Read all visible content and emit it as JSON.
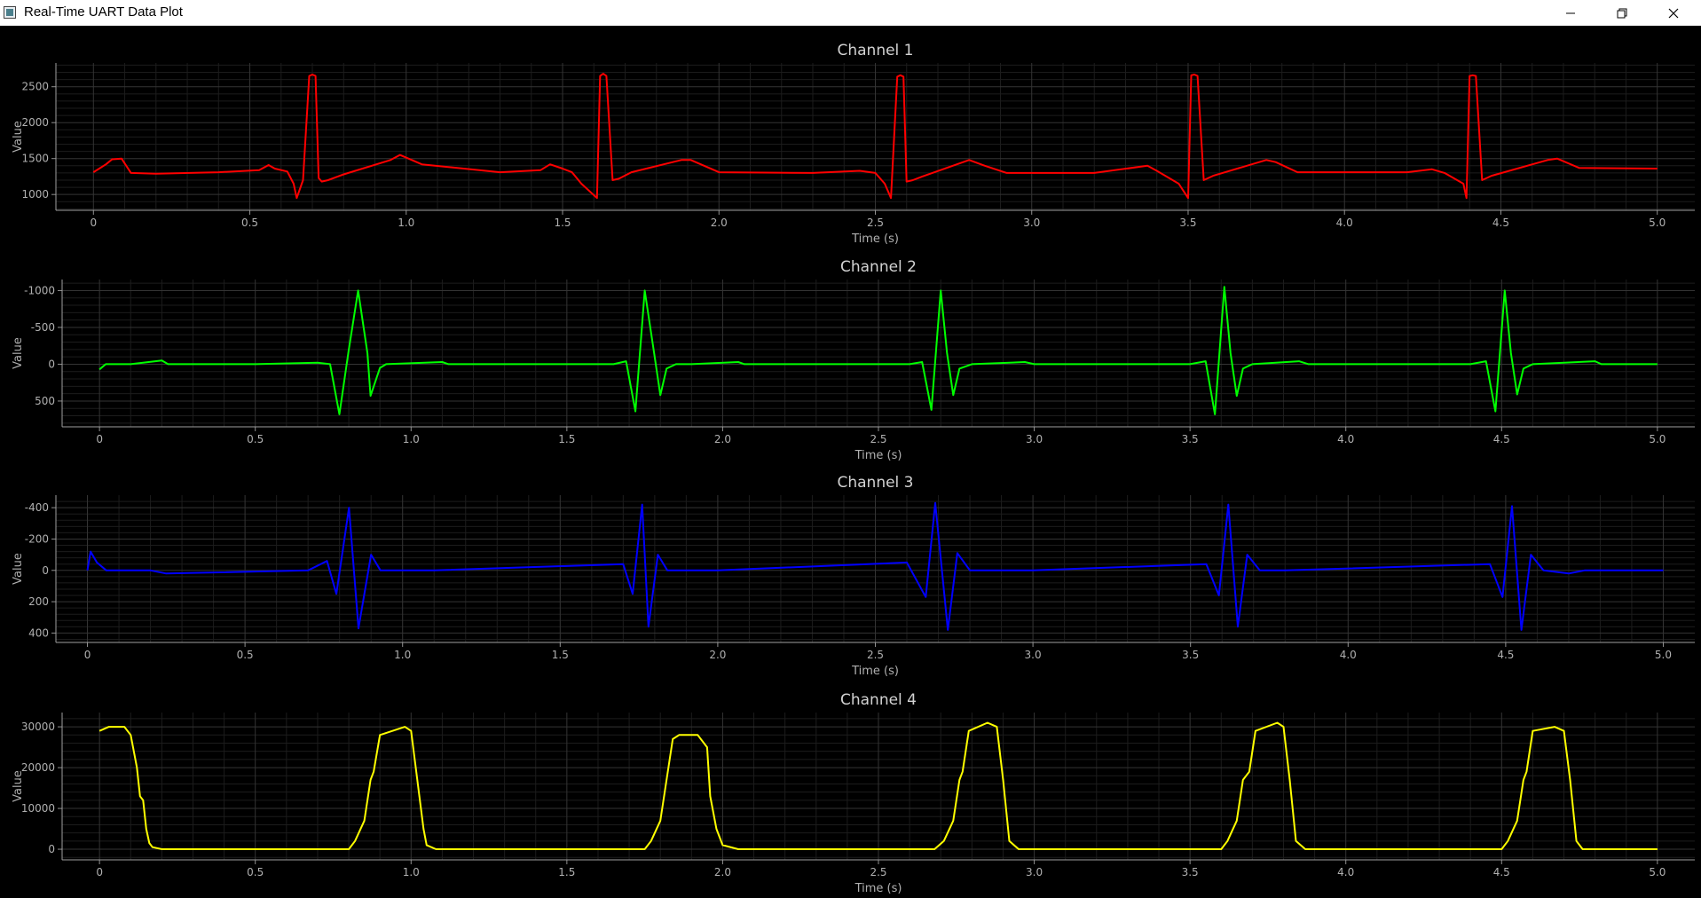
{
  "window": {
    "title": "Real-Time UART Data Plot",
    "icons": {
      "app": "app-icon",
      "minimize": "minimize-icon",
      "maximize": "restore-icon",
      "close": "close-icon"
    }
  },
  "chart_data": [
    {
      "type": "line",
      "title": "Channel 1",
      "xlabel": "Time (s)",
      "ylabel": "Value",
      "color": "#ff0000",
      "grid": true,
      "xlim": [
        -0.12,
        5.12
      ],
      "ylim": [
        780,
        2830
      ],
      "inverted_y": false,
      "xticks": [
        {
          "v": 0,
          "label": "0"
        },
        {
          "v": 0.5,
          "label": "0.5"
        },
        {
          "v": 1,
          "label": "1.0"
        },
        {
          "v": 1.5,
          "label": "1.5"
        },
        {
          "v": 2,
          "label": "2.0"
        },
        {
          "v": 2.5,
          "label": "2.5"
        },
        {
          "v": 3,
          "label": "3.0"
        },
        {
          "v": 3.5,
          "label": "3.5"
        },
        {
          "v": 4,
          "label": "4.0"
        },
        {
          "v": 4.5,
          "label": "4.5"
        },
        {
          "v": 5,
          "label": "5.0"
        }
      ],
      "yticks": [
        {
          "v": 1000,
          "label": "1000"
        },
        {
          "v": 1500,
          "label": "1500"
        },
        {
          "v": 2000,
          "label": "2000"
        },
        {
          "v": 2500,
          "label": "2500"
        }
      ],
      "series": [
        {
          "x": [
            0,
            0.04,
            0.06,
            0.09,
            0.12,
            0.2,
            0.4,
            0.53,
            0.56,
            0.58,
            0.62,
            0.64,
            0.65,
            0.67,
            0.69,
            0.7,
            0.71,
            0.72,
            0.73,
            0.75,
            0.8,
            0.95,
            0.98,
            1.05,
            1.3,
            1.43,
            1.46,
            1.5,
            1.53,
            1.56,
            1.61,
            1.62,
            1.63,
            1.64,
            1.66,
            1.68,
            1.72,
            1.88,
            1.91,
            2.0,
            2.3,
            2.45,
            2.5,
            2.53,
            2.55,
            2.57,
            2.58,
            2.59,
            2.6,
            2.62,
            2.65,
            2.8,
            2.85,
            2.92,
            3.2,
            3.37,
            3.4,
            3.47,
            3.5,
            3.51,
            3.52,
            3.53,
            3.55,
            3.58,
            3.75,
            3.78,
            3.85,
            4.2,
            4.28,
            4.32,
            4.38,
            4.39,
            4.4,
            4.41,
            4.42,
            4.44,
            4.47,
            4.65,
            4.68,
            4.75,
            5.0
          ],
          "y": [
            1310,
            1420,
            1490,
            1500,
            1300,
            1290,
            1310,
            1340,
            1410,
            1360,
            1320,
            1150,
            950,
            1200,
            2650,
            2670,
            2650,
            1230,
            1180,
            1200,
            1280,
            1480,
            1550,
            1420,
            1310,
            1340,
            1420,
            1360,
            1310,
            1150,
            950,
            2650,
            2680,
            2650,
            1200,
            1220,
            1310,
            1480,
            1480,
            1310,
            1300,
            1330,
            1300,
            1150,
            950,
            2640,
            2660,
            2640,
            1180,
            1200,
            1250,
            1480,
            1400,
            1300,
            1300,
            1400,
            1330,
            1150,
            950,
            2660,
            2670,
            2650,
            1200,
            1260,
            1480,
            1450,
            1310,
            1310,
            1350,
            1300,
            1150,
            950,
            2650,
            2660,
            2650,
            1200,
            1260,
            1480,
            1500,
            1370,
            1360
          ]
        }
      ]
    },
    {
      "type": "line",
      "title": "Channel 2",
      "xlabel": "Time (s)",
      "ylabel": "Value",
      "color": "#00ff00",
      "grid": true,
      "xlim": [
        -0.12,
        5.12
      ],
      "ylim": [
        850,
        -1150
      ],
      "inverted_y": true,
      "xticks": [
        {
          "v": 0,
          "label": "0"
        },
        {
          "v": 0.5,
          "label": "0.5"
        },
        {
          "v": 1,
          "label": "1.0"
        },
        {
          "v": 1.5,
          "label": "1.5"
        },
        {
          "v": 2,
          "label": "2.0"
        },
        {
          "v": 2.5,
          "label": "2.5"
        },
        {
          "v": 3,
          "label": "3.0"
        },
        {
          "v": 3.5,
          "label": "3.5"
        },
        {
          "v": 4,
          "label": "4.0"
        },
        {
          "v": 4.5,
          "label": "4.5"
        },
        {
          "v": 5,
          "label": "5.0"
        }
      ],
      "yticks": [
        {
          "v": -1000,
          "label": "-1000"
        },
        {
          "v": -500,
          "label": "-500"
        },
        {
          "v": 0,
          "label": "0"
        },
        {
          "v": 500,
          "label": "500"
        }
      ],
      "series": [
        {
          "x": [
            0,
            0.02,
            0.1,
            0.2,
            0.22,
            0.25,
            0.5,
            0.7,
            0.74,
            0.77,
            0.8,
            0.83,
            0.86,
            0.87,
            0.9,
            0.92,
            1.1,
            1.12,
            1.4,
            1.65,
            1.69,
            1.72,
            1.75,
            1.78,
            1.8,
            1.82,
            1.85,
            1.9,
            2.05,
            2.07,
            2.6,
            2.64,
            2.67,
            2.7,
            2.72,
            2.74,
            2.76,
            2.8,
            2.97,
            3.0,
            3.5,
            3.55,
            3.58,
            3.61,
            3.63,
            3.65,
            3.67,
            3.7,
            3.85,
            3.88,
            4.4,
            4.45,
            4.48,
            4.51,
            4.53,
            4.55,
            4.57,
            4.6,
            4.8,
            4.82,
            5.0
          ],
          "y": [
            70,
            0,
            0,
            -50,
            0,
            0,
            0,
            -20,
            0,
            680,
            -200,
            -1000,
            -150,
            430,
            50,
            0,
            -30,
            0,
            0,
            0,
            -40,
            640,
            -1000,
            -150,
            420,
            60,
            0,
            0,
            -30,
            0,
            0,
            -30,
            620,
            -1000,
            -150,
            420,
            60,
            0,
            -30,
            0,
            0,
            -40,
            680,
            -1050,
            -150,
            430,
            60,
            0,
            -40,
            0,
            0,
            -40,
            640,
            -1000,
            -150,
            410,
            60,
            0,
            -40,
            0,
            0
          ]
        }
      ]
    },
    {
      "type": "line",
      "title": "Channel 3",
      "xlabel": "Time (s)",
      "ylabel": "Value",
      "color": "#0000ff",
      "grid": true,
      "xlim": [
        -0.1,
        5.1
      ],
      "ylim": [
        460,
        -480
      ],
      "inverted_y": true,
      "xticks": [
        {
          "v": 0,
          "label": "0"
        },
        {
          "v": 0.5,
          "label": "0.5"
        },
        {
          "v": 1,
          "label": "1.0"
        },
        {
          "v": 1.5,
          "label": "1.5"
        },
        {
          "v": 2,
          "label": "2.0"
        },
        {
          "v": 2.5,
          "label": "2.5"
        },
        {
          "v": 3,
          "label": "3.0"
        },
        {
          "v": 3.5,
          "label": "3.5"
        },
        {
          "v": 4,
          "label": "4.0"
        },
        {
          "v": 4.5,
          "label": "4.5"
        },
        {
          "v": 5,
          "label": "5.0"
        }
      ],
      "yticks": [
        {
          "v": -400,
          "label": "-400"
        },
        {
          "v": -200,
          "label": "-200"
        },
        {
          "v": 0,
          "label": "0"
        },
        {
          "v": 200,
          "label": "200"
        },
        {
          "v": 400,
          "label": "400"
        }
      ],
      "series": [
        {
          "x": [
            0,
            0.01,
            0.03,
            0.06,
            0.1,
            0.2,
            0.25,
            0.7,
            0.76,
            0.79,
            0.83,
            0.86,
            0.9,
            0.93,
            1.0,
            1.1,
            1.7,
            1.73,
            1.76,
            1.78,
            1.81,
            1.84,
            1.88,
            2.0,
            2.6,
            2.66,
            2.69,
            2.73,
            2.76,
            2.8,
            2.85,
            3.0,
            3.55,
            3.59,
            3.62,
            3.65,
            3.68,
            3.72,
            3.8,
            4.45,
            4.49,
            4.52,
            4.55,
            4.58,
            4.62,
            4.7,
            4.75,
            5.0
          ],
          "y": [
            0,
            -120,
            -50,
            0,
            0,
            0,
            20,
            0,
            -60,
            150,
            -400,
            370,
            -100,
            0,
            0,
            0,
            -40,
            150,
            -420,
            360,
            -100,
            0,
            0,
            0,
            -50,
            170,
            -430,
            380,
            -110,
            0,
            0,
            0,
            -40,
            160,
            -420,
            360,
            -100,
            0,
            0,
            -40,
            170,
            -410,
            380,
            -100,
            0,
            20,
            0,
            0
          ]
        }
      ]
    },
    {
      "type": "line",
      "title": "Channel 4",
      "xlabel": "Time (s)",
      "ylabel": "Value",
      "color": "#ffff00",
      "grid": true,
      "xlim": [
        -0.12,
        5.12
      ],
      "ylim": [
        -2600,
        33500
      ],
      "inverted_y": false,
      "xticks": [
        {
          "v": 0,
          "label": "0"
        },
        {
          "v": 0.5,
          "label": "0.5"
        },
        {
          "v": 1,
          "label": "1.0"
        },
        {
          "v": 1.5,
          "label": "1.5"
        },
        {
          "v": 2,
          "label": "2.0"
        },
        {
          "v": 2.5,
          "label": "2.5"
        },
        {
          "v": 3,
          "label": "3.0"
        },
        {
          "v": 3.5,
          "label": "3.5"
        },
        {
          "v": 4,
          "label": "4.0"
        },
        {
          "v": 4.5,
          "label": "4.5"
        },
        {
          "v": 5,
          "label": "5.0"
        }
      ],
      "yticks": [
        {
          "v": 0,
          "label": "0"
        },
        {
          "v": 10000,
          "label": "10000"
        },
        {
          "v": 20000,
          "label": "20000"
        },
        {
          "v": 30000,
          "label": "30000"
        }
      ],
      "series": [
        {
          "x": [
            0,
            0.03,
            0.08,
            0.1,
            0.12,
            0.13,
            0.14,
            0.15,
            0.16,
            0.17,
            0.2,
            0.8,
            0.82,
            0.85,
            0.87,
            0.88,
            0.9,
            0.98,
            1.0,
            1.02,
            1.04,
            1.05,
            1.08,
            1.75,
            1.77,
            1.8,
            1.82,
            1.84,
            1.86,
            1.92,
            1.95,
            1.96,
            1.98,
            2.0,
            2.05,
            2.68,
            2.71,
            2.74,
            2.76,
            2.77,
            2.79,
            2.85,
            2.88,
            2.9,
            2.92,
            2.95,
            3.6,
            3.62,
            3.65,
            3.67,
            3.69,
            3.71,
            3.78,
            3.8,
            3.82,
            3.84,
            3.87,
            4.5,
            4.52,
            4.55,
            4.57,
            4.58,
            4.6,
            4.67,
            4.7,
            4.72,
            4.74,
            4.76,
            5.0
          ],
          "y": [
            29000,
            30000,
            30000,
            28000,
            20000,
            13000,
            12000,
            5000,
            1500,
            500,
            0,
            0,
            2000,
            7000,
            17000,
            19000,
            28000,
            30000,
            29000,
            17000,
            5000,
            1000,
            0,
            0,
            2000,
            7000,
            17000,
            27000,
            28000,
            28000,
            25000,
            13000,
            5000,
            1000,
            0,
            0,
            2000,
            7000,
            17000,
            19000,
            29000,
            31000,
            30000,
            17000,
            2000,
            0,
            0,
            2000,
            7000,
            17000,
            19000,
            29000,
            31000,
            30000,
            17000,
            2000,
            0,
            0,
            2000,
            7000,
            17000,
            19000,
            29000,
            30000,
            29000,
            17000,
            2000,
            0,
            0
          ]
        }
      ]
    }
  ]
}
